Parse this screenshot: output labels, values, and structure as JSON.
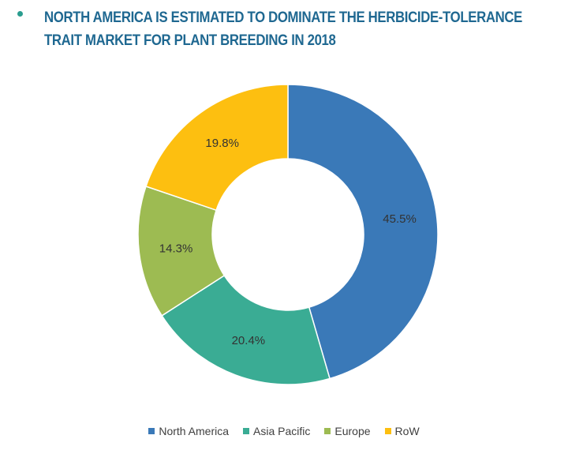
{
  "header": {
    "title": "NORTH AMERICA IS ESTIMATED TO DOMINATE THE HERBICIDE-TOLERANCE TRAIT MARKET FOR PLANT BREEDING IN 2018",
    "title_color": "#1f6891",
    "bullet_color": "#2a9d8f"
  },
  "chart_data": {
    "type": "pie",
    "style": "donut",
    "title": "NORTH AMERICA IS ESTIMATED TO DOMINATE THE HERBICIDE-TOLERANCE TRAIT MARKET FOR PLANT BREEDING IN 2018",
    "slices": [
      {
        "name": "North America",
        "value": 45.5,
        "label": "45.5%",
        "color": "#3a79b8"
      },
      {
        "name": "Asia Pacific",
        "value": 20.4,
        "label": "20.4%",
        "color": "#3aac94"
      },
      {
        "name": "Europe",
        "value": 14.3,
        "label": "14.3%",
        "color": "#9dbb52"
      },
      {
        "name": "RoW",
        "value": 19.8,
        "label": "19.8%",
        "color": "#fdbf10"
      }
    ],
    "legend_position": "bottom"
  }
}
